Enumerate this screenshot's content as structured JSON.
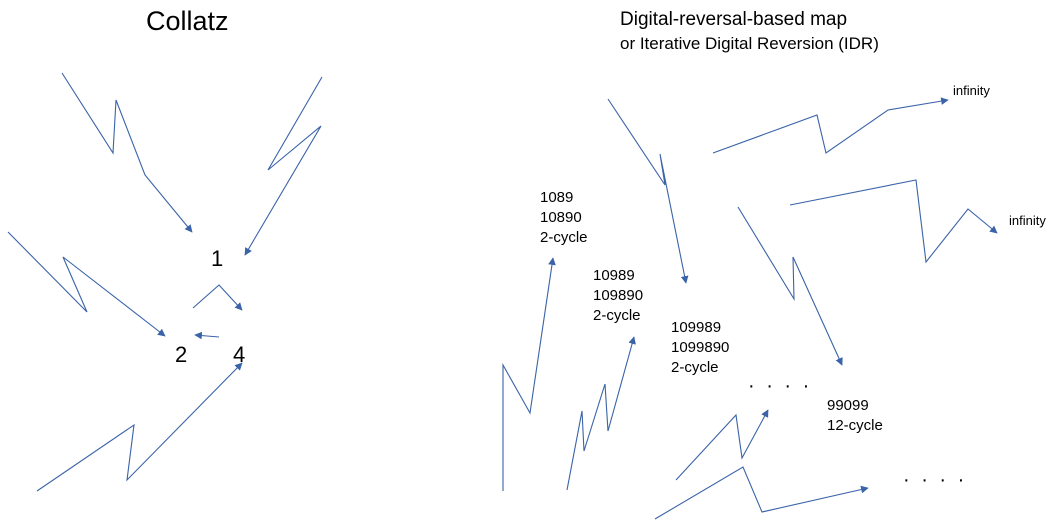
{
  "collatz": {
    "title": "Collatz",
    "nodes": {
      "one": "1",
      "two": "2",
      "four": "4"
    }
  },
  "idr": {
    "title": "Digital-reversal-based map",
    "subtitle": "or Iterative Digital Reversion (IDR)",
    "cycles": [
      {
        "lines": [
          "1089",
          "10890",
          "2-cycle"
        ]
      },
      {
        "lines": [
          "10989",
          "109890",
          "2-cycle"
        ]
      },
      {
        "lines": [
          "109989",
          "1099890",
          "2-cycle"
        ]
      },
      {
        "lines": [
          "99099",
          "12-cycle"
        ]
      }
    ],
    "infinity_labels": [
      "infinity",
      "infinity"
    ],
    "ellipsis": [
      "· · · ·",
      "· · · ·"
    ]
  },
  "colors": {
    "arrow": "#3a63a8",
    "text": "#000000",
    "background": "#ffffff"
  }
}
